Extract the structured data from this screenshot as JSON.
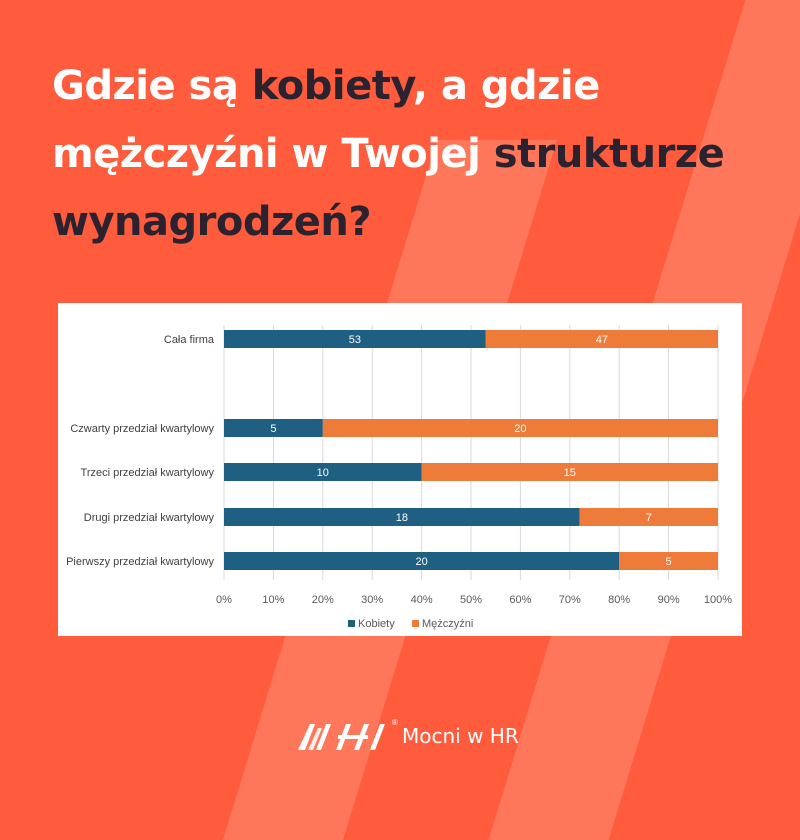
{
  "headline": {
    "part1": "Gdzie są ",
    "part2": "kobiety",
    "part3": ", a gdzie mężczyźni w Twojej ",
    "part4": "strukturze wynagrodzeń?"
  },
  "brand": {
    "name": "Mocni w HR",
    "logo_icon": "mocni-w-hr-logo-icon",
    "registered_mark": "®"
  },
  "colors": {
    "background": "#ff5c3e",
    "kobiety": "#1e5f82",
    "mezczyzni": "#ee7b3a"
  },
  "chart_data": {
    "type": "bar",
    "orientation": "horizontal",
    "stacked": "100%",
    "categories": [
      "Cała firma",
      "",
      "Czwarty przedział kwartylowy",
      "Trzeci przedział kwartylowy",
      "Drugi przedział kwartylowy",
      "Pierwszy przedział kwartylowy"
    ],
    "series": [
      {
        "name": "Kobiety",
        "values": [
          53,
          null,
          5,
          10,
          18,
          20
        ]
      },
      {
        "name": "Mężczyźni",
        "values": [
          47,
          null,
          20,
          15,
          7,
          5
        ]
      }
    ],
    "x_ticks": [
      "0%",
      "10%",
      "20%",
      "30%",
      "40%",
      "50%",
      "60%",
      "70%",
      "80%",
      "90%",
      "100%"
    ],
    "xlim": [
      0,
      100
    ],
    "grid": "vertical",
    "legend": "bottom",
    "title": "",
    "xlabel": "",
    "ylabel": ""
  }
}
